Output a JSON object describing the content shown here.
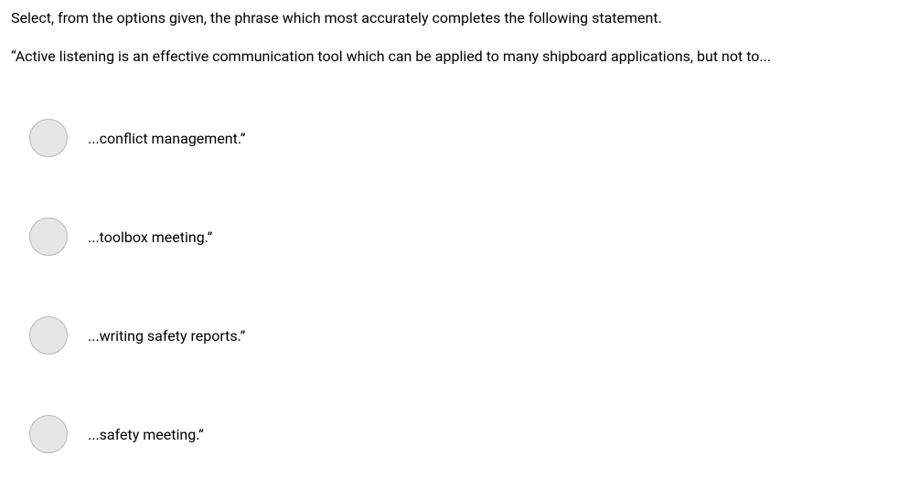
{
  "question": {
    "instruction": "Select, from the options given, the phrase which most accurately completes the following statement.",
    "statement": "“Active listening is an effective communication tool which can be applied to many shipboard applications, but not to..."
  },
  "options": [
    {
      "label": "...conflict management.”"
    },
    {
      "label": "...toolbox meeting.”"
    },
    {
      "label": "...writing safety reports.”"
    },
    {
      "label": "...safety meeting.”"
    }
  ],
  "styling": {
    "background_color": "#ffffff",
    "text_color": "#000000",
    "radio_fill": "#e6e6e6",
    "radio_border": "#b7b7b7",
    "base_fontsize": 16,
    "radio_diameter": 42
  }
}
